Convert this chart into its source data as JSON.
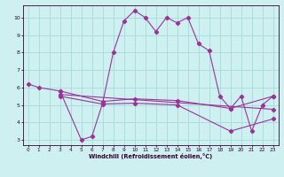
{
  "xlabel": "Windchill (Refroidissement éolien,°C)",
  "bg_color": "#cff0f0",
  "grid_color": "#aadddd",
  "line_color": "#993399",
  "xlim": [
    -0.5,
    23.5
  ],
  "ylim": [
    2.7,
    10.7
  ],
  "xticks": [
    0,
    1,
    2,
    3,
    4,
    5,
    6,
    7,
    8,
    9,
    10,
    11,
    12,
    13,
    14,
    15,
    16,
    17,
    18,
    19,
    20,
    21,
    22,
    23
  ],
  "yticks": [
    3,
    4,
    5,
    6,
    7,
    8,
    9,
    10
  ],
  "series1_x": [
    0,
    1,
    3,
    5,
    6,
    7,
    8,
    9,
    10,
    11,
    12,
    13,
    14,
    15,
    16,
    17,
    18,
    19,
    20,
    21,
    22,
    23
  ],
  "series1_y": [
    6.2,
    6.0,
    5.8,
    3.0,
    3.2,
    5.1,
    8.0,
    9.8,
    10.4,
    10.0,
    9.2,
    10.0,
    9.7,
    10.0,
    8.5,
    8.1,
    5.5,
    4.8,
    5.5,
    3.5,
    5.0,
    5.5
  ],
  "series2_x": [
    3,
    7,
    10,
    14,
    19,
    23
  ],
  "series2_y": [
    5.8,
    5.2,
    5.35,
    5.25,
    4.8,
    5.5
  ],
  "series3_x": [
    3,
    23
  ],
  "series3_y": [
    5.6,
    4.75
  ],
  "series4_x": [
    3,
    7,
    10,
    14,
    19,
    23
  ],
  "series4_y": [
    5.5,
    5.05,
    5.1,
    5.0,
    3.5,
    4.2
  ]
}
